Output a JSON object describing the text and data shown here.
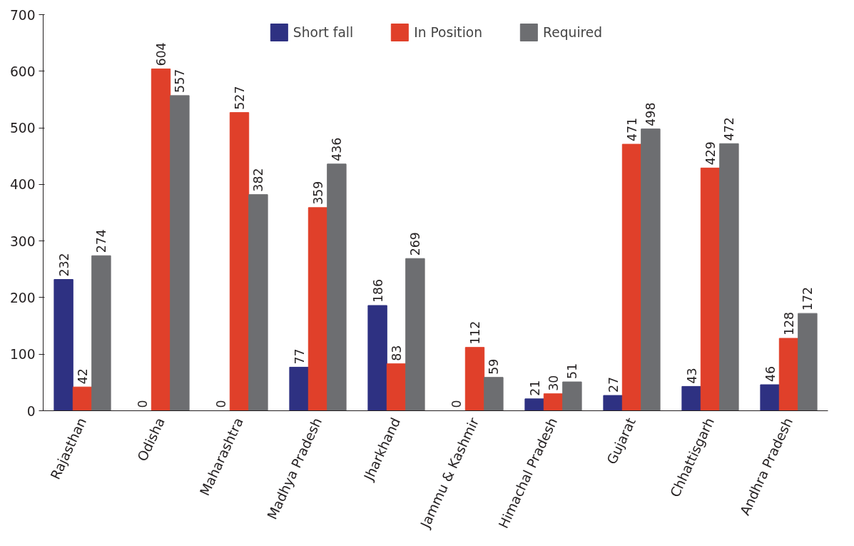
{
  "chart_data": {
    "type": "bar",
    "categories": [
      "Rajasthan",
      "Odisha",
      "Maharashtra",
      "Madhya Pradesh",
      "Jharkhand",
      "Jammu & Kashmir",
      "Himachal Pradesh",
      "Gujarat",
      "Chhattisgarh",
      "Andhra Pradesh"
    ],
    "series": [
      {
        "name": "Short fall",
        "color": "#2e3182",
        "values": [
          232,
          0,
          0,
          77,
          186,
          0,
          21,
          27,
          43,
          46
        ]
      },
      {
        "name": "In Position",
        "color": "#e0402a",
        "values": [
          42,
          604,
          527,
          359,
          83,
          112,
          30,
          471,
          429,
          128
        ]
      },
      {
        "name": "Required",
        "color": "#6d6e71",
        "values": [
          274,
          557,
          382,
          436,
          269,
          59,
          51,
          498,
          472,
          172
        ]
      }
    ],
    "ylim": [
      0,
      700
    ],
    "yticks": [
      0,
      100,
      200,
      300,
      400,
      500,
      600,
      700
    ],
    "data_labels": true,
    "legend": "top",
    "grid": false
  }
}
